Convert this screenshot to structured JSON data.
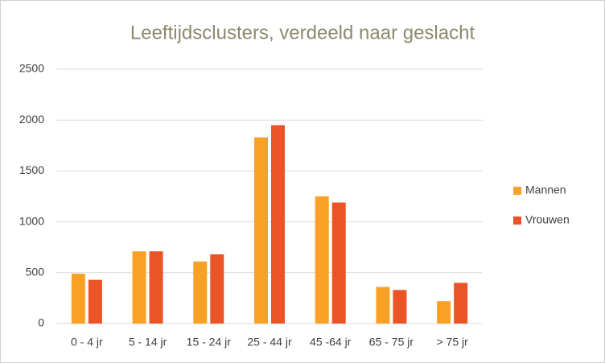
{
  "chart_data": {
    "type": "bar",
    "title": "Leeftijdsclusters, verdeeld naar geslacht",
    "categories": [
      "0 - 4 jr",
      "5 - 14 jr",
      "15 - 24 jr",
      "25 - 44 jr",
      "45 -64 jr",
      "65 - 75 jr",
      "> 75 jr"
    ],
    "series": [
      {
        "name": "Mannen",
        "color": "#f9a125",
        "values": [
          490,
          710,
          610,
          1830,
          1250,
          360,
          220
        ]
      },
      {
        "name": "Vrouwen",
        "color": "#ea5427",
        "values": [
          430,
          710,
          680,
          1950,
          1190,
          330,
          400
        ]
      }
    ],
    "ylim": [
      0,
      2500
    ],
    "yticks": [
      0,
      500,
      1000,
      1500,
      2000,
      2500
    ],
    "grid": true,
    "legend": "right"
  }
}
